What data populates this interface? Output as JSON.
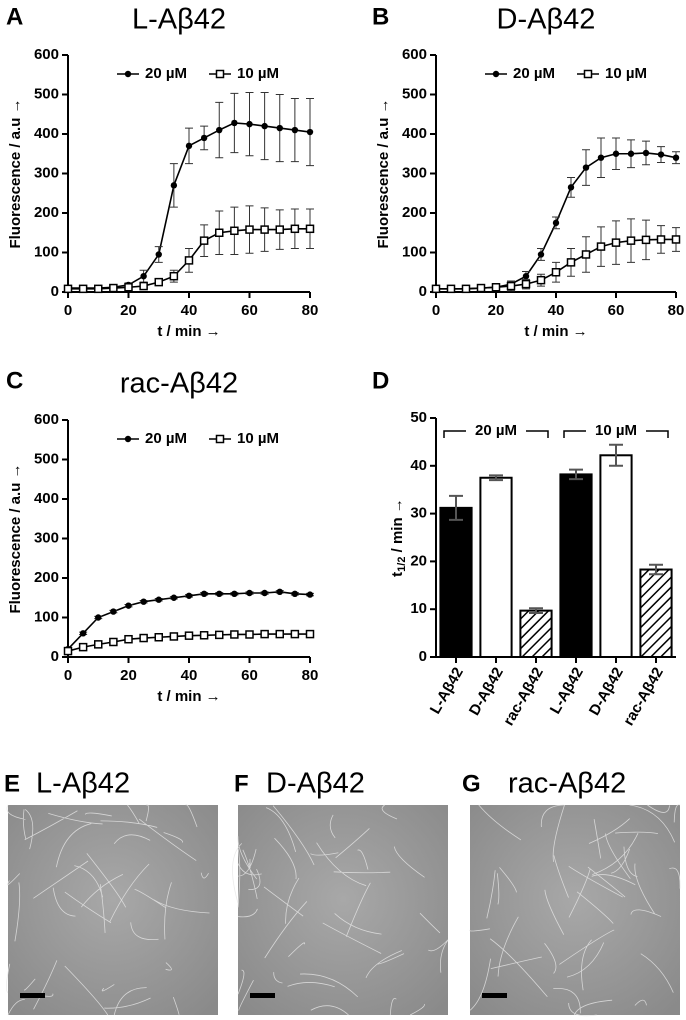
{
  "chart_data": [
    {
      "type": "line",
      "panel_label": "A",
      "title": "L-Aβ42",
      "x_label": "t / min →",
      "y_label": "Fluorescence / a.u →",
      "xlim": [
        0,
        80
      ],
      "xticks": [
        0,
        20,
        40,
        60,
        80
      ],
      "ylim": [
        0,
        600
      ],
      "yticks": [
        0,
        100,
        200,
        300,
        400,
        500,
        600
      ],
      "x": [
        0,
        5,
        10,
        15,
        20,
        25,
        30,
        35,
        40,
        45,
        50,
        55,
        60,
        65,
        70,
        75,
        80
      ],
      "series": [
        {
          "name": "20 µM",
          "color": "#000000",
          "marker": "filled-circle",
          "values": [
            10,
            10,
            10,
            12,
            18,
            40,
            95,
            270,
            370,
            390,
            410,
            428,
            425,
            420,
            415,
            410,
            405
          ],
          "errors": [
            5,
            5,
            5,
            5,
            5,
            15,
            20,
            55,
            45,
            30,
            70,
            75,
            80,
            85,
            85,
            80,
            85
          ]
        },
        {
          "name": "10 µM",
          "color": "#000000",
          "marker": "open-square",
          "values": [
            8,
            8,
            8,
            10,
            12,
            15,
            25,
            40,
            80,
            130,
            150,
            155,
            158,
            158,
            158,
            160,
            160
          ],
          "errors": [
            5,
            5,
            5,
            5,
            5,
            5,
            8,
            15,
            30,
            40,
            55,
            60,
            60,
            55,
            50,
            50,
            50
          ]
        }
      ]
    },
    {
      "type": "line",
      "panel_label": "B",
      "title": "D-Aβ42",
      "x_label": "t / min →",
      "y_label": "Fluorescence / a.u →",
      "xlim": [
        0,
        80
      ],
      "xticks": [
        0,
        20,
        40,
        60,
        80
      ],
      "ylim": [
        0,
        600
      ],
      "yticks": [
        0,
        100,
        200,
        300,
        400,
        500,
        600
      ],
      "x": [
        0,
        5,
        10,
        15,
        20,
        25,
        30,
        35,
        40,
        45,
        50,
        55,
        60,
        65,
        70,
        75,
        80
      ],
      "series": [
        {
          "name": "20 µM",
          "color": "#000000",
          "marker": "filled-circle",
          "values": [
            8,
            8,
            8,
            10,
            12,
            20,
            40,
            95,
            175,
            265,
            315,
            340,
            350,
            350,
            352,
            348,
            340
          ],
          "errors": [
            5,
            5,
            5,
            5,
            5,
            8,
            12,
            15,
            15,
            25,
            45,
            50,
            40,
            35,
            30,
            20,
            15
          ]
        },
        {
          "name": "10 µM",
          "color": "#000000",
          "marker": "open-square",
          "values": [
            8,
            8,
            8,
            10,
            12,
            15,
            20,
            30,
            50,
            75,
            95,
            115,
            125,
            130,
            132,
            133,
            133
          ],
          "errors": [
            5,
            5,
            5,
            5,
            5,
            12,
            12,
            15,
            25,
            35,
            45,
            50,
            55,
            55,
            50,
            35,
            30
          ]
        }
      ]
    },
    {
      "type": "line",
      "panel_label": "C",
      "title": "rac-Aβ42",
      "x_label": "t / min →",
      "y_label": "Fluorescence / a.u →",
      "xlim": [
        0,
        80
      ],
      "xticks": [
        0,
        20,
        40,
        60,
        80
      ],
      "ylim": [
        0,
        600
      ],
      "yticks": [
        0,
        100,
        200,
        300,
        400,
        500,
        600
      ],
      "x": [
        0,
        5,
        10,
        15,
        20,
        25,
        30,
        35,
        40,
        45,
        50,
        55,
        60,
        65,
        70,
        75,
        80
      ],
      "series": [
        {
          "name": "20 µM",
          "color": "#000000",
          "marker": "filled-circle",
          "values": [
            20,
            60,
            100,
            115,
            130,
            140,
            145,
            150,
            155,
            160,
            160,
            160,
            162,
            162,
            165,
            160,
            158
          ],
          "errors": [
            3,
            3,
            3,
            3,
            3,
            3,
            3,
            3,
            3,
            3,
            3,
            3,
            3,
            3,
            3,
            3,
            3
          ]
        },
        {
          "name": "10 µM",
          "color": "#000000",
          "marker": "open-square",
          "values": [
            15,
            25,
            32,
            38,
            45,
            48,
            50,
            52,
            54,
            55,
            56,
            57,
            57,
            58,
            58,
            58,
            58
          ],
          "errors": [
            2,
            2,
            2,
            2,
            2,
            2,
            2,
            2,
            2,
            2,
            2,
            2,
            2,
            2,
            2,
            2,
            2
          ]
        }
      ]
    },
    {
      "type": "bar",
      "panel_label": "D",
      "y_label": "t",
      "y_label_sub": "1/2",
      "y_label_rest": " / min →",
      "ylim": [
        0,
        50
      ],
      "yticks": [
        0,
        10,
        20,
        30,
        40,
        50
      ],
      "categories": [
        "L-Aβ42",
        "D-Aβ42",
        "rac-Aβ42",
        "L-Aβ42",
        "D-Aβ42",
        "rac-Aβ42"
      ],
      "values": [
        31.2,
        37.5,
        9.7,
        38.2,
        42.2,
        18.3
      ],
      "errors": [
        2.5,
        0.5,
        0.5,
        1,
        2.2,
        1
      ],
      "bar_styles": [
        "solid",
        "open",
        "hatched",
        "solid",
        "open",
        "hatched"
      ],
      "group_labels": [
        "20 µM",
        "10 µM"
      ]
    }
  ],
  "micrographs": [
    {
      "panel_label": "E",
      "title": "L-Aβ42"
    },
    {
      "panel_label": "F",
      "title": "D-Aβ42"
    },
    {
      "panel_label": "G",
      "title": "rac-Aβ42"
    }
  ]
}
